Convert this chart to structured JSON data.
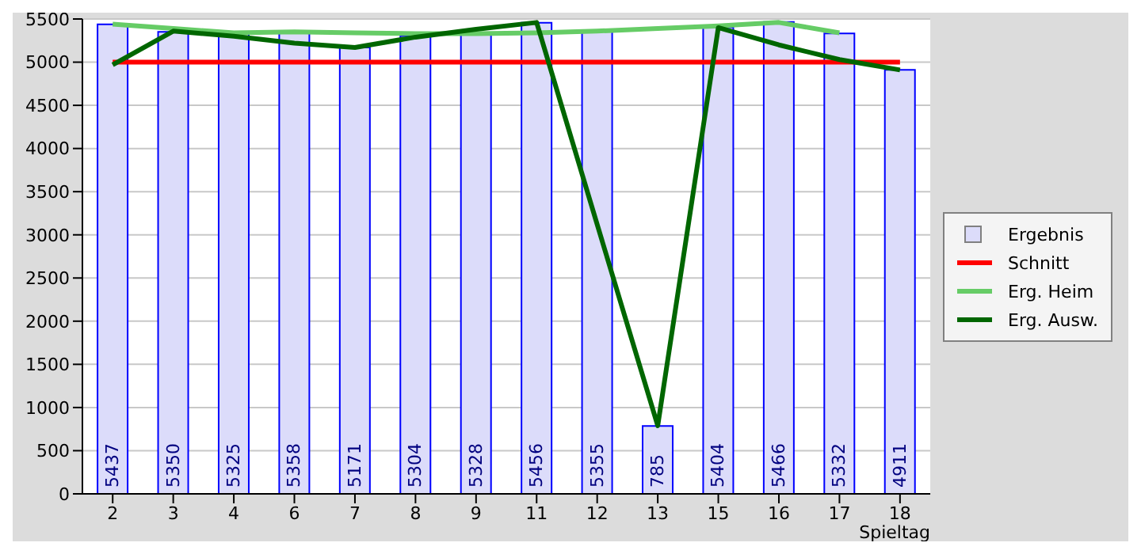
{
  "chart_data": {
    "type": "bar",
    "xlabel": "Spieltag",
    "categories": [
      "2",
      "3",
      "4",
      "6",
      "7",
      "8",
      "9",
      "11",
      "12",
      "13",
      "15",
      "16",
      "17",
      "18"
    ],
    "series": [
      {
        "name": "Ergebnis",
        "color": "#0000ff",
        "values": [
          5437,
          5350,
          5325,
          5358,
          5171,
          5304,
          5328,
          5456,
          5355,
          785,
          5404,
          5466,
          5332,
          4911
        ],
        "value_labels": [
          "5437",
          "5350",
          "5325",
          "5358",
          "5171",
          "5304",
          "5328",
          "5456",
          "5355",
          "785",
          "5404",
          "5466",
          "5332",
          "4911"
        ]
      },
      {
        "name": "Schnitt",
        "type": "line",
        "color": "#ff0000",
        "values": [
          5000,
          5000,
          5000,
          5000,
          5000,
          5000,
          5000,
          5000,
          5000,
          5000,
          5000,
          5000,
          5000,
          5000
        ]
      },
      {
        "name": "Erg. Heim",
        "type": "line",
        "color": "#66cc66",
        "values": [
          5440,
          5390,
          5340,
          5350,
          5340,
          5330,
          5330,
          5340,
          5360,
          5390,
          5420,
          5460,
          5340,
          null
        ]
      },
      {
        "name": "Erg. Ausw.",
        "type": "line",
        "color": "#006600",
        "values": [
          4970,
          5360,
          5300,
          5220,
          5170,
          5290,
          5380,
          5460,
          3120,
          790,
          5400,
          5200,
          5030,
          4910
        ]
      }
    ],
    "ylim": [
      0,
      5500
    ],
    "yticks": [
      0,
      500,
      1000,
      1500,
      2000,
      2500,
      3000,
      3500,
      4000,
      4500,
      5000,
      5500
    ],
    "grid": "y",
    "legend": "right"
  }
}
